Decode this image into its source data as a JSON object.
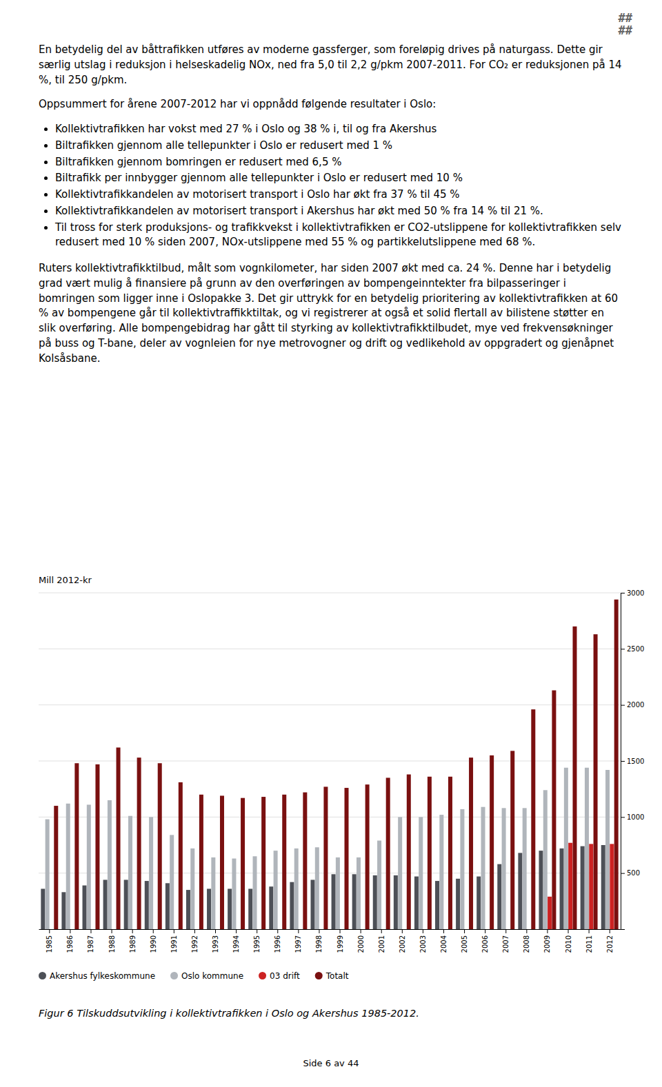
{
  "page": {
    "corner_marks": [
      "##",
      "##"
    ],
    "paragraphs_before": [
      "En betydelig del av båttrafikken utføres av moderne gassferger, som foreløpig drives på naturgass. Dette gir særlig utslag i reduksjon i helseskadelig NOx, ned fra 5,0 til 2,2 g/pkm 2007-2011. For CO₂ er reduksjonen på 14 %, til 250 g/pkm.",
      "Oppsummert for årene 2007-2012 har vi oppnådd følgende resultater i Oslo:"
    ],
    "bullets": [
      "Kollektivtrafikken har vokst med 27 % i Oslo og 38 % i, til og fra Akershus",
      "Biltrafikken gjennom alle tellepunkter i Oslo er redusert med 1 %",
      "Biltrafikken gjennom bomringen er redusert med 6,5 %",
      "Biltrafikk per innbygger gjennom alle tellepunkter i Oslo er redusert med 10 %",
      "Kollektivtrafikkandelen av motorisert transport i Oslo har økt fra 37 % til 45 %",
      "Kollektivtrafikkandelen av motorisert transport i Akershus har økt med 50 % fra 14 % til 21 %.",
      "Til tross for sterk produksjons- og trafikkvekst i kollektivtrafikken er CO2-utslippene for kollektivtrafikken selv redusert med 10 % siden 2007, NOx-utslippene med 55 % og partikkelutslippene med 68 %."
    ],
    "paragraphs_after": [
      "Ruters kollektivtrafikktilbud, målt som vognkilometer, har siden 2007 økt med ca. 24 %. Denne har i betydelig grad vært mulig å finansiere på grunn av den overføringen av bompengeinntekter fra bilpasseringer i bomringen som ligger inne i Oslopakke 3. Det gir uttrykk for en betydelig prioritering av kollektivtrafikken at 60 % av bompengene går til kollektivtraffikktiltak, og vi registrerer at også et solid flertall av bilistene støtter en slik overføring. Alle bompengebidrag har gått til styrking av kollektivtrafikktilbudet, mye ved frekvensøkninger på buss og T-bane, deler av vognleien for nye metrovogner og drift og vedlikehold av oppgradert og gjenåpnet Kolsåsbane."
    ],
    "page_number": "Side 6 av 44"
  },
  "chart_data": {
    "type": "bar",
    "title": "Figur 6 Tilskuddsutvikling i kollektivtrafikken i Oslo og Akershus 1985-2012.",
    "ylabel": "Mill 2012-kr",
    "categories": [
      1985,
      1986,
      1987,
      1988,
      1989,
      1990,
      1991,
      1992,
      1993,
      1994,
      1995,
      1996,
      1997,
      1998,
      1999,
      2000,
      2001,
      2002,
      2003,
      2004,
      2005,
      2006,
      2007,
      2008,
      2009,
      2010,
      2011,
      2012
    ],
    "series": [
      {
        "name": "Akershus fylkeskommune",
        "color": "#4d5057",
        "values": [
          360,
          330,
          390,
          440,
          440,
          430,
          410,
          350,
          360,
          360,
          360,
          380,
          420,
          440,
          490,
          490,
          480,
          480,
          470,
          430,
          450,
          470,
          580,
          680,
          700,
          720,
          740,
          750
        ]
      },
      {
        "name": "Oslo kommune",
        "color": "#b0b5bb",
        "values": [
          980,
          1120,
          1110,
          1150,
          1010,
          1000,
          840,
          720,
          640,
          630,
          650,
          700,
          720,
          730,
          640,
          640,
          790,
          1000,
          1000,
          1020,
          1070,
          1090,
          1080,
          1080,
          1240,
          1440,
          1440,
          1420
        ]
      },
      {
        "name": "03 drift",
        "color": "#cc2222",
        "values": [
          0,
          0,
          0,
          0,
          0,
          0,
          0,
          0,
          0,
          0,
          0,
          0,
          0,
          0,
          0,
          0,
          0,
          0,
          0,
          0,
          0,
          0,
          0,
          0,
          290,
          770,
          760,
          760
        ]
      },
      {
        "name": "Totalt",
        "color": "#7a1010",
        "values": [
          1100,
          1480,
          1470,
          1620,
          1530,
          1480,
          1310,
          1200,
          1190,
          1170,
          1180,
          1200,
          1220,
          1270,
          1260,
          1290,
          1350,
          1380,
          1360,
          1360,
          1530,
          1550,
          1590,
          1960,
          2130,
          2700,
          2630,
          2940
        ]
      }
    ],
    "ylim": [
      0,
      3000
    ],
    "yticks": [
      500,
      1000,
      1500,
      2000,
      2500,
      3000
    ],
    "grid": true,
    "legend": "bottom"
  }
}
